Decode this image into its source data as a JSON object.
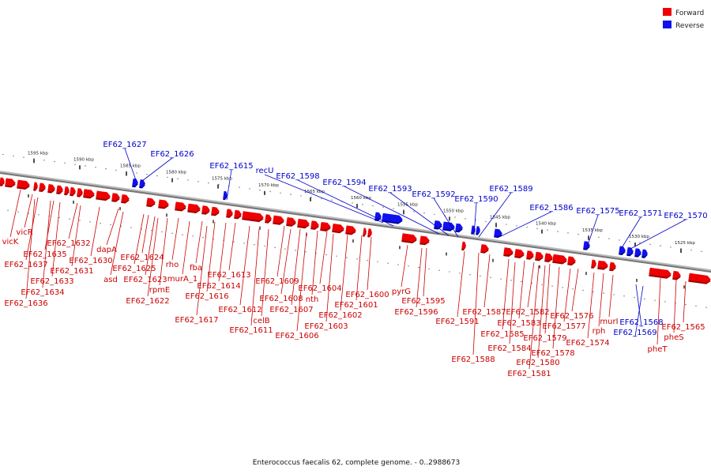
{
  "colors": {
    "forward": "#ee0000",
    "reverse": "#1111ee",
    "forward_dark": "#9a0000",
    "reverse_dark": "#000099",
    "backbone": "#888888"
  },
  "legend": [
    {
      "label": "Forward",
      "color": "#ee0000"
    },
    {
      "label": "Reverse",
      "color": "#1111ee"
    }
  ],
  "caption": "Enterococcus faecalis 62, complete genome. - 0..2988673",
  "scale_labels": [
    "1595 kbp",
    "1590 kbp",
    "1585 kbp",
    "1580 kbp",
    "1575 kbp",
    "1570 kbp",
    "1565 kbp",
    "1560 kbp",
    "1555 kbp",
    "1550 kbp",
    "1545 kbp",
    "1540 kbp",
    "1535 kbp",
    "1530 kbp",
    "1525 kbp"
  ],
  "reverse_genes": [
    "EF62_1627",
    "EF62_1626",
    "EF62_1615",
    "recU",
    "EF62_1598",
    "EF62_1594",
    "EF62_1593",
    "EF62_1592",
    "EF62_1590",
    "EF62_1589",
    "EF62_1586",
    "EF62_1575",
    "EF62_1571",
    "EF62_1570",
    "EF62_1568",
    "EF62_1569"
  ],
  "forward_genes": [
    "vicR",
    "vicK",
    "EF62_1637",
    "EF62_1635",
    "EF62_1632",
    "EF62_1631",
    "EF62_1633",
    "EF62_1634",
    "EF62_1636",
    "dapA",
    "EF62_1630",
    "asd",
    "EF62_1624",
    "EF62_1625",
    "EF62_1623",
    "EF62_1622",
    "rho",
    "rpmE",
    "fba",
    "murA_1",
    "EF62_1613",
    "EF62_1614",
    "EF62_1616",
    "EF62_1617",
    "EF62_1612",
    "EF62_1609",
    "EF62_1608",
    "EF62_1611",
    "celB",
    "EF62_1607",
    "nth",
    "EF62_1606",
    "EF62_1604",
    "EF62_1603",
    "EF62_1602",
    "EF62_1601",
    "EF62_1600",
    "pyrG",
    "EF62_1595",
    "EF62_1596",
    "EF62_1591",
    "EF62_1588",
    "EF62_1587",
    "EF62_1585",
    "EF62_1583",
    "EF62_1584",
    "EF62_1582",
    "EF62_1579",
    "EF62_1581",
    "EF62_1580",
    "EF62_1578",
    "EF62_1577",
    "EF62_1576",
    "EF62_1574",
    "rph",
    "murI",
    "pheT",
    "pheS",
    "EF62_1565"
  ]
}
